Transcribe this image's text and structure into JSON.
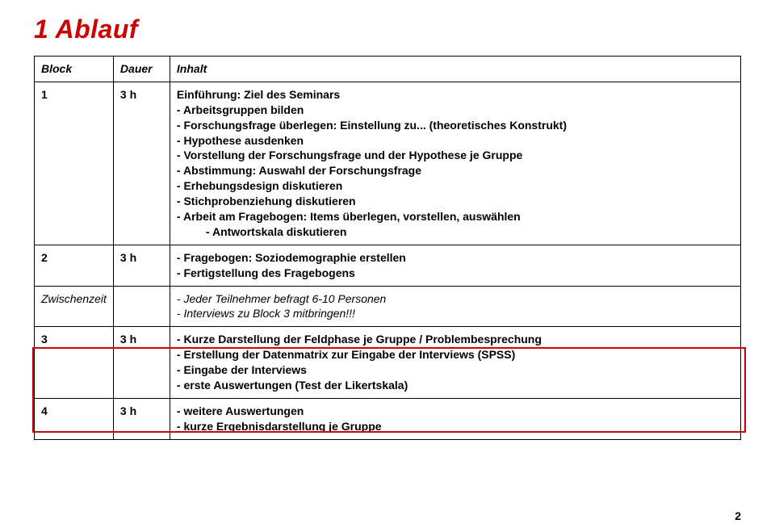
{
  "page": {
    "title": "1  Ablauf",
    "page_number": "2"
  },
  "colors": {
    "accent": "#cc0000",
    "text": "#000000",
    "bg": "#ffffff",
    "border": "#000000"
  },
  "table": {
    "headers": {
      "block": "Block",
      "dauer": "Dauer",
      "inhalt": "Inhalt"
    },
    "rows": [
      {
        "block": "1",
        "dauer": "3 h",
        "heading": "Einführung: Ziel des Seminars",
        "items": [
          "- Arbeitsgruppen bilden",
          "- Forschungsfrage überlegen: Einstellung zu... (theoretisches Konstrukt)",
          "- Hypothese ausdenken",
          "- Vorstellung der Forschungsfrage und der Hypothese je Gruppe",
          "- Abstimmung: Auswahl der Forschungsfrage",
          "- Erhebungsdesign diskutieren",
          "- Stichprobenziehung diskutieren",
          "- Arbeit am Fragebogen: Items überlegen, vorstellen, auswählen"
        ],
        "indent_item": "- Antwortskala diskutieren"
      },
      {
        "block": "2",
        "dauer": "3 h",
        "items": [
          "- Fragebogen: Soziodemographie erstellen",
          "- Fertigstellung des Fragebogens"
        ]
      },
      {
        "block": "Zwischenzeit",
        "dauer": "",
        "italic_items": [
          "- Jeder Teilnehmer befragt 6-10 Personen",
          "- Interviews zu Block 3 mitbringen!!!"
        ]
      },
      {
        "block": "3",
        "dauer": "3 h",
        "items": [
          "- Kurze Darstellung der Feldphase je Gruppe / Problembesprechung",
          "- Erstellung der Datenmatrix zur Eingabe der Interviews (SPSS)",
          "- Eingabe der Interviews",
          "- erste Auswertungen (Test der Likertskala)"
        ]
      },
      {
        "block": "4",
        "dauer": "3 h",
        "items": [
          "- weitere Auswertungen",
          "- kurze Ergebnisdarstellung je Gruppe"
        ]
      }
    ]
  }
}
